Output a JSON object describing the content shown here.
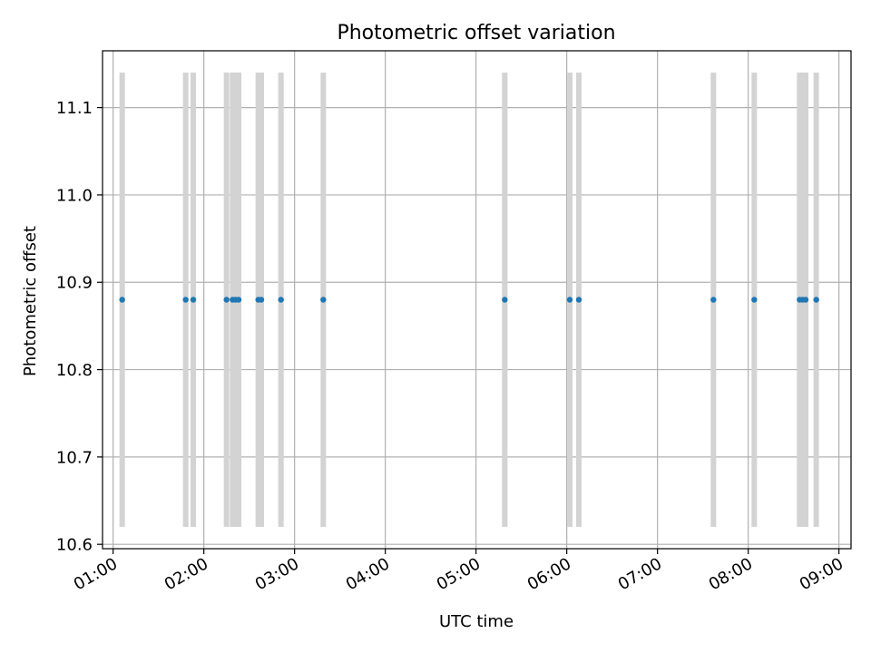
{
  "chart_data": {
    "type": "scatter",
    "title": "Photometric offset variation",
    "xlabel": "UTC time",
    "ylabel": "Photometric offset",
    "xlim": [
      "00:53",
      "09:08"
    ],
    "ylim": [
      10.595,
      11.165
    ],
    "xticks": [
      "01:00",
      "02:00",
      "03:00",
      "04:00",
      "05:00",
      "06:00",
      "07:00",
      "08:00",
      "09:00"
    ],
    "yticks": [
      10.6,
      10.7,
      10.8,
      10.9,
      11.0,
      11.1
    ],
    "grid": true,
    "colors": {
      "points": "#1f77b4",
      "bands": "#d3d3d3",
      "grid": "#b0b0b0"
    },
    "band_range": [
      10.62,
      11.14
    ],
    "points": [
      {
        "x": "01:06",
        "y": 10.88
      },
      {
        "x": "01:48",
        "y": 10.88
      },
      {
        "x": "01:53",
        "y": 10.88
      },
      {
        "x": "02:15",
        "y": 10.88
      },
      {
        "x": "02:19",
        "y": 10.88
      },
      {
        "x": "02:21",
        "y": 10.88
      },
      {
        "x": "02:23",
        "y": 10.88
      },
      {
        "x": "02:36",
        "y": 10.88
      },
      {
        "x": "02:38",
        "y": 10.88
      },
      {
        "x": "02:51",
        "y": 10.88
      },
      {
        "x": "03:19",
        "y": 10.88
      },
      {
        "x": "05:19",
        "y": 10.88
      },
      {
        "x": "06:02",
        "y": 10.88
      },
      {
        "x": "06:08",
        "y": 10.88
      },
      {
        "x": "07:37",
        "y": 10.88
      },
      {
        "x": "08:04",
        "y": 10.88
      },
      {
        "x": "08:34",
        "y": 10.88
      },
      {
        "x": "08:36",
        "y": 10.88
      },
      {
        "x": "08:38",
        "y": 10.88
      },
      {
        "x": "08:45",
        "y": 10.88
      }
    ]
  }
}
